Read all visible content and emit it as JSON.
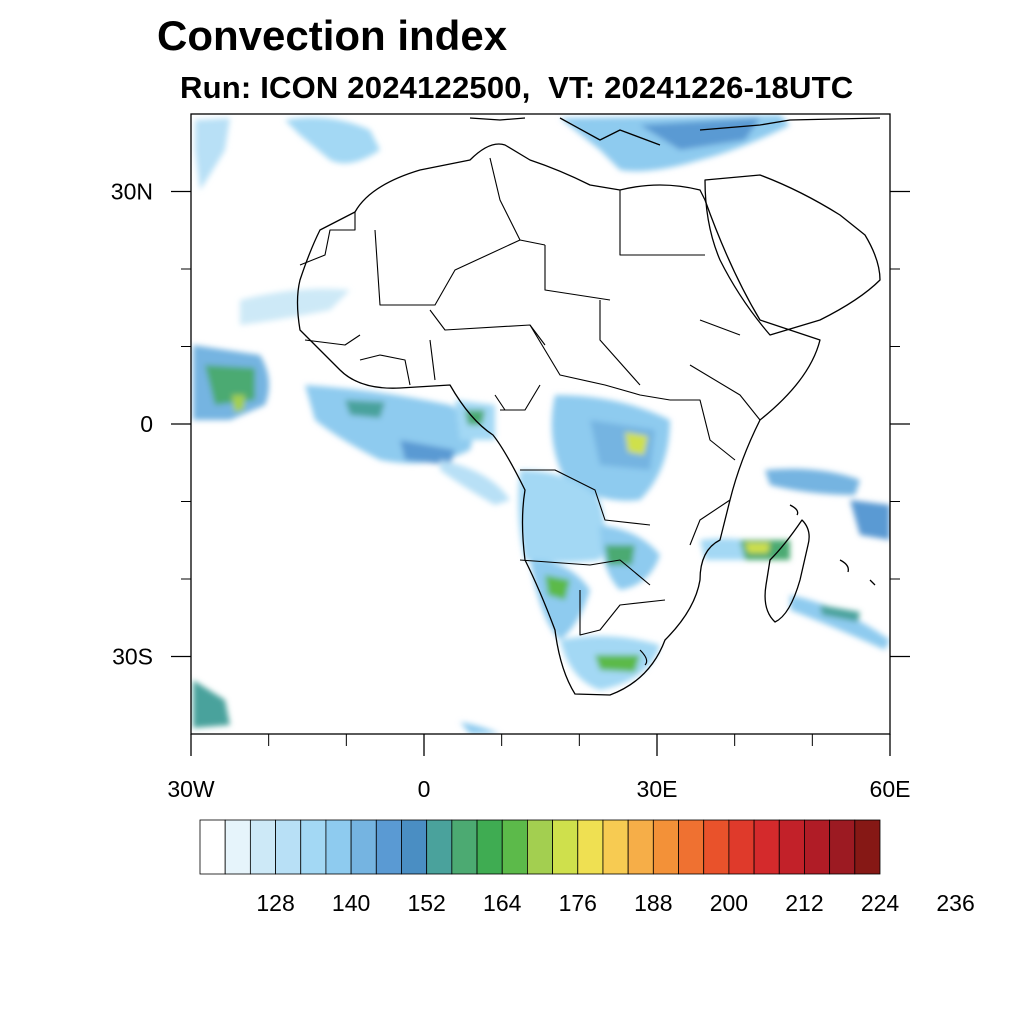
{
  "title": "Convection index",
  "subtitle": "Run: ICON 2024122500,  VT: 20241226-18UTC",
  "map": {
    "region": "Africa",
    "projection": "cylindrical equidistant",
    "lon_range": [
      -30,
      60
    ],
    "lat_range": [
      -40,
      40
    ],
    "lon_ticks": [
      {
        "lon": -30,
        "label": "30W"
      },
      {
        "lon": 0,
        "label": "0"
      },
      {
        "lon": 30,
        "label": "30E"
      },
      {
        "lon": 60,
        "label": "60E"
      }
    ],
    "lat_ticks": [
      {
        "lat": 30,
        "label": "30N"
      },
      {
        "lat": 0,
        "label": "0"
      },
      {
        "lat": -30,
        "label": "30S"
      }
    ],
    "minor_lon_ticks": [
      -20,
      -10,
      10,
      20,
      40,
      50
    ],
    "minor_lat_ticks": [
      20,
      10,
      -10,
      -20
    ]
  },
  "colorbar": {
    "colors": [
      "#ffffff",
      "#e6f4fb",
      "#cde9f7",
      "#b8e0f6",
      "#a3d8f4",
      "#8ecbef",
      "#75b4e1",
      "#5a9ad3",
      "#4a8ec3",
      "#4aa29c",
      "#4caa72",
      "#3fac52",
      "#5cba4a",
      "#a3cf50",
      "#cfe04c",
      "#efe052",
      "#f7cb52",
      "#f6ae48",
      "#f39138",
      "#ef7131",
      "#e9522b",
      "#df3a2b",
      "#d42a2c",
      "#c22129",
      "#b01c26",
      "#9c1a22",
      "#861815"
    ],
    "labels": [
      "128",
      "140",
      "152",
      "164",
      "176",
      "188",
      "200",
      "212",
      "224",
      "236"
    ]
  }
}
